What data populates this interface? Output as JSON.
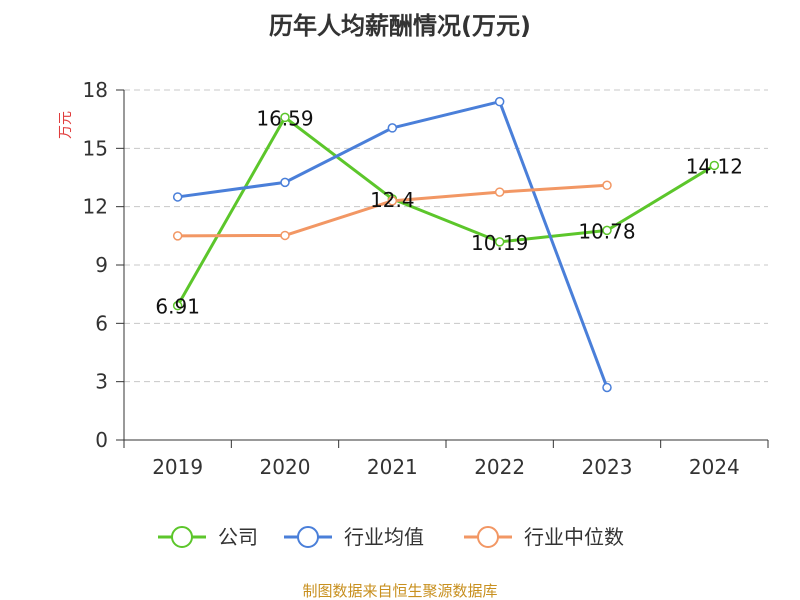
{
  "chart_data": {
    "type": "line",
    "title": "历年人均薪酬情况(万元)",
    "ylabel": "万元",
    "xlabel": "",
    "categories": [
      "2019",
      "2020",
      "2021",
      "2022",
      "2023",
      "2024"
    ],
    "ylim": [
      0,
      18
    ],
    "yticks": [
      0,
      3,
      6,
      9,
      12,
      15,
      18
    ],
    "grid": true,
    "legend_position": "bottom",
    "series": [
      {
        "name": "公司",
        "color": "#5cc62b",
        "values": [
          6.91,
          16.59,
          12.4,
          10.19,
          10.78,
          14.12
        ],
        "labels": [
          "6.91",
          "16.59",
          "12.4",
          "10.19",
          "10.78",
          "14.12"
        ]
      },
      {
        "name": "行业均值",
        "color": "#4a7fd9",
        "values": [
          12.5,
          13.25,
          16.05,
          17.4,
          2.7,
          null
        ]
      },
      {
        "name": "行业中位数",
        "color": "#f29764",
        "values": [
          10.5,
          10.52,
          12.3,
          12.75,
          13.1,
          null
        ]
      }
    ]
  },
  "source": {
    "text": "制图数据来自恒生聚源数据库",
    "color": "#c8901f"
  },
  "ylabel_color": "#e03c3c"
}
